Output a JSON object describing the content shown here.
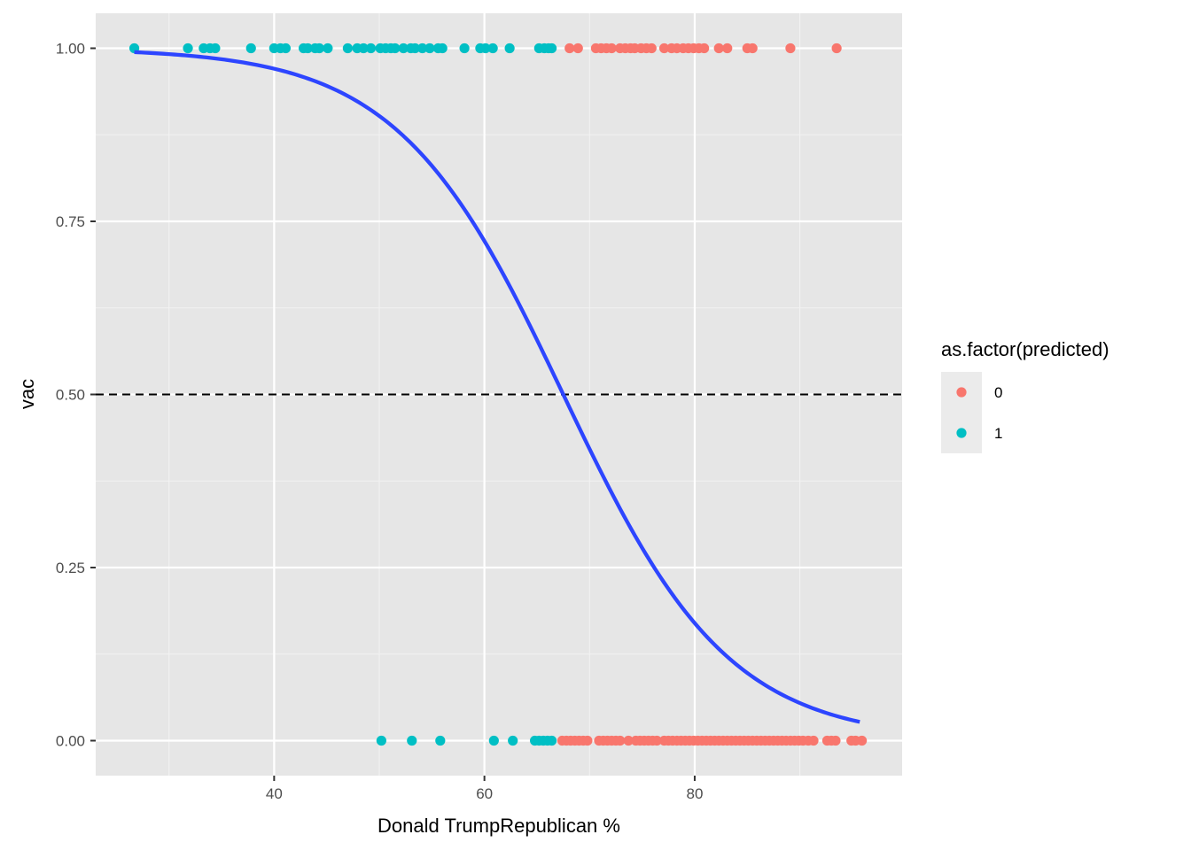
{
  "chart_data": {
    "type": "scatter",
    "title": "",
    "xlabel": "Donald TrumpRepublican %",
    "ylabel": "vac",
    "xlim": [
      22.5,
      99
    ],
    "ylim": [
      -0.05,
      1.05
    ],
    "x_ticks": [
      40,
      60,
      80
    ],
    "x_minor_ticks": [
      30,
      50,
      70,
      90
    ],
    "y_ticks": [
      0.0,
      0.25,
      0.5,
      0.75,
      1.0
    ],
    "y_tick_labels": [
      "0.00",
      "0.25",
      "0.50",
      "0.75",
      "1.00"
    ],
    "y_minor_ticks": [
      0.125,
      0.375,
      0.625,
      0.875
    ],
    "grid": true,
    "panel_background": "#e6e6e6",
    "threshold": {
      "y": 0.5,
      "style": "dashed",
      "color": "#000000"
    },
    "legend": {
      "title": "as.factor(predicted)",
      "position": "right",
      "entries": [
        {
          "label": "0",
          "color": "#f8766d"
        },
        {
          "label": "1",
          "color": "#00bfc4"
        }
      ]
    },
    "fit_curve": {
      "type": "logistic",
      "color": "#2d45ff",
      "x_range": [
        26.7,
        95.7
      ],
      "midpoint": 67.5,
      "slope": 0.127
    },
    "series": [
      {
        "name": "1",
        "color": "#00bfc4",
        "points": [
          [
            26.7,
            1
          ],
          [
            31.8,
            1
          ],
          [
            33.3,
            1
          ],
          [
            33.9,
            1
          ],
          [
            34.4,
            1
          ],
          [
            37.8,
            1
          ],
          [
            40.0,
            1
          ],
          [
            40.6,
            1
          ],
          [
            41.1,
            1
          ],
          [
            42.8,
            1
          ],
          [
            43.2,
            1
          ],
          [
            43.9,
            1
          ],
          [
            44.3,
            1
          ],
          [
            45.1,
            1
          ],
          [
            47.0,
            1
          ],
          [
            47.9,
            1
          ],
          [
            48.5,
            1
          ],
          [
            49.2,
            1
          ],
          [
            50.1,
            1
          ],
          [
            50.6,
            1
          ],
          [
            51.1,
            1
          ],
          [
            51.5,
            1
          ],
          [
            52.3,
            1
          ],
          [
            53.0,
            1
          ],
          [
            53.4,
            1
          ],
          [
            54.1,
            1
          ],
          [
            54.8,
            1
          ],
          [
            55.6,
            1
          ],
          [
            56.0,
            1
          ],
          [
            58.1,
            1
          ],
          [
            59.6,
            1
          ],
          [
            60.1,
            1
          ],
          [
            60.8,
            1
          ],
          [
            62.4,
            1
          ],
          [
            65.2,
            1
          ],
          [
            65.7,
            1
          ],
          [
            66.1,
            1
          ],
          [
            66.4,
            1
          ],
          [
            50.2,
            0
          ],
          [
            53.1,
            0
          ],
          [
            55.8,
            0
          ],
          [
            60.9,
            0
          ],
          [
            62.7,
            0
          ],
          [
            64.8,
            0
          ],
          [
            65.2,
            0
          ],
          [
            65.6,
            0
          ],
          [
            66.0,
            0
          ],
          [
            66.4,
            0
          ]
        ]
      },
      {
        "name": "0",
        "color": "#f8766d",
        "points": [
          [
            68.1,
            1
          ],
          [
            68.9,
            1
          ],
          [
            70.6,
            1
          ],
          [
            71.1,
            1
          ],
          [
            71.6,
            1
          ],
          [
            72.1,
            1
          ],
          [
            72.9,
            1
          ],
          [
            73.4,
            1
          ],
          [
            73.9,
            1
          ],
          [
            74.3,
            1
          ],
          [
            74.9,
            1
          ],
          [
            75.4,
            1
          ],
          [
            75.9,
            1
          ],
          [
            77.1,
            1
          ],
          [
            77.8,
            1
          ],
          [
            78.3,
            1
          ],
          [
            78.9,
            1
          ],
          [
            79.4,
            1
          ],
          [
            79.9,
            1
          ],
          [
            80.4,
            1
          ],
          [
            80.9,
            1
          ],
          [
            82.3,
            1
          ],
          [
            83.1,
            1
          ],
          [
            85.0,
            1
          ],
          [
            85.5,
            1
          ],
          [
            89.1,
            1
          ],
          [
            93.5,
            1
          ],
          [
            67.4,
            0
          ],
          [
            67.8,
            0
          ],
          [
            68.2,
            0
          ],
          [
            68.6,
            0
          ],
          [
            69.0,
            0
          ],
          [
            69.4,
            0
          ],
          [
            69.8,
            0
          ],
          [
            70.9,
            0
          ],
          [
            71.3,
            0
          ],
          [
            71.7,
            0
          ],
          [
            72.1,
            0
          ],
          [
            72.5,
            0
          ],
          [
            72.9,
            0
          ],
          [
            73.7,
            0
          ],
          [
            74.4,
            0
          ],
          [
            74.8,
            0
          ],
          [
            75.2,
            0
          ],
          [
            75.6,
            0
          ],
          [
            76.0,
            0
          ],
          [
            76.4,
            0
          ],
          [
            77.1,
            0
          ],
          [
            77.5,
            0
          ],
          [
            77.9,
            0
          ],
          [
            78.3,
            0
          ],
          [
            78.7,
            0
          ],
          [
            79.1,
            0
          ],
          [
            79.5,
            0
          ],
          [
            79.9,
            0
          ],
          [
            80.3,
            0
          ],
          [
            80.7,
            0
          ],
          [
            81.1,
            0
          ],
          [
            81.5,
            0
          ],
          [
            81.9,
            0
          ],
          [
            82.3,
            0
          ],
          [
            82.7,
            0
          ],
          [
            83.1,
            0
          ],
          [
            83.5,
            0
          ],
          [
            83.9,
            0
          ],
          [
            84.3,
            0
          ],
          [
            84.7,
            0
          ],
          [
            85.1,
            0
          ],
          [
            85.5,
            0
          ],
          [
            85.9,
            0
          ],
          [
            86.3,
            0
          ],
          [
            86.7,
            0
          ],
          [
            87.1,
            0
          ],
          [
            87.5,
            0
          ],
          [
            87.9,
            0
          ],
          [
            88.3,
            0
          ],
          [
            88.7,
            0
          ],
          [
            89.1,
            0
          ],
          [
            89.5,
            0
          ],
          [
            89.9,
            0
          ],
          [
            90.3,
            0
          ],
          [
            90.8,
            0
          ],
          [
            91.3,
            0
          ],
          [
            92.6,
            0
          ],
          [
            93.0,
            0
          ],
          [
            93.4,
            0
          ],
          [
            94.9,
            0
          ],
          [
            95.3,
            0
          ],
          [
            95.9,
            0
          ]
        ]
      }
    ]
  }
}
